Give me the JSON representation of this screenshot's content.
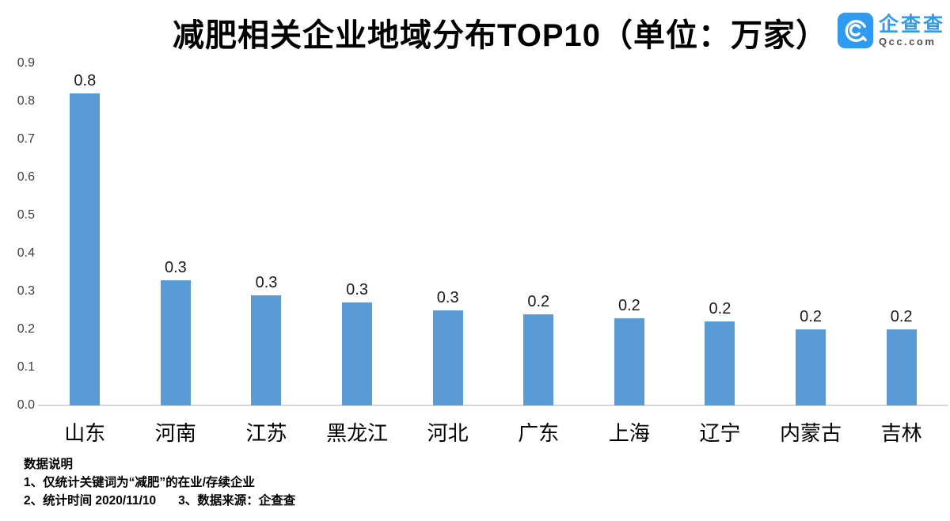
{
  "title": "减肥相关企业地域分布TOP10（单位：万家）",
  "logo": {
    "name": "企查查",
    "domain": "Qcc.com"
  },
  "colors": {
    "bar": "#5b9bd5",
    "axis_line": "#d9d9d9",
    "logo_blue": "#2e9bf0"
  },
  "chart_data": {
    "type": "bar",
    "title": "减肥相关企业地域分布TOP10（单位：万家）",
    "categories": [
      "山东",
      "河南",
      "江苏",
      "黑龙江",
      "河北",
      "广东",
      "上海",
      "辽宁",
      "内蒙古",
      "吉林"
    ],
    "values": [
      0.82,
      0.33,
      0.29,
      0.27,
      0.25,
      0.24,
      0.23,
      0.22,
      0.2,
      0.2
    ],
    "labels": [
      "0.8",
      "0.3",
      "0.3",
      "0.3",
      "0.3",
      "0.2",
      "0.2",
      "0.2",
      "0.2",
      "0.2"
    ],
    "xlabel": "",
    "ylabel": "",
    "ylim": [
      0,
      0.9
    ],
    "yticks": [
      "0.0",
      "0.1",
      "0.2",
      "0.3",
      "0.4",
      "0.5",
      "0.6",
      "0.7",
      "0.8",
      "0.9"
    ],
    "grid": false,
    "legend": false,
    "unit": "万家"
  },
  "notes": {
    "heading": "数据说明",
    "line1": "1、仅统计关键词为“减肥”的在业/存续企业",
    "line2a": "2、统计时间 2020/11/10",
    "line2b": "3、数据来源：企查查"
  }
}
